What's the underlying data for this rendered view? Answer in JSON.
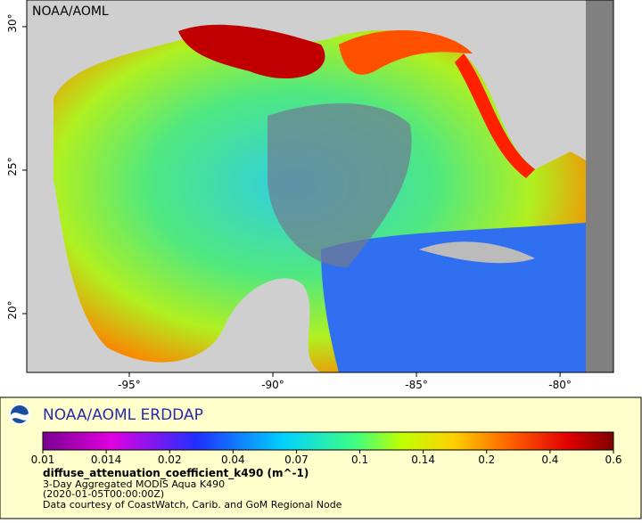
{
  "map": {
    "corner_label": "NOAA/AOML",
    "xlim": [
      -98.57,
      -78.14
    ],
    "ylim": [
      17.95,
      30.93
    ],
    "xticks": [
      {
        "value": -95,
        "label": "-95°"
      },
      {
        "value": -90,
        "label": "-90°"
      },
      {
        "value": -85,
        "label": "-85°"
      },
      {
        "value": -80,
        "label": "-80°"
      }
    ],
    "yticks": [
      {
        "value": 20,
        "label": "20°"
      },
      {
        "value": 25,
        "label": "25°"
      },
      {
        "value": 30,
        "label": "30°"
      }
    ]
  },
  "legend": {
    "title": "NOAA/AOML ERDDAP",
    "colorbar_ticks": [
      0.01,
      0.014,
      0.02,
      0.04,
      0.07,
      0.1,
      0.14,
      0.2,
      0.4,
      0.6
    ],
    "variable": "diffuse_attenuation_coefficient_k490 (m^-1)",
    "lines": [
      "3-Day Aggregated MODIS Aqua K490",
      "(2020-01-05T00:00:00Z)",
      "Data courtesy of CoastWatch, Carib. and GoM Regional Node"
    ]
  }
}
